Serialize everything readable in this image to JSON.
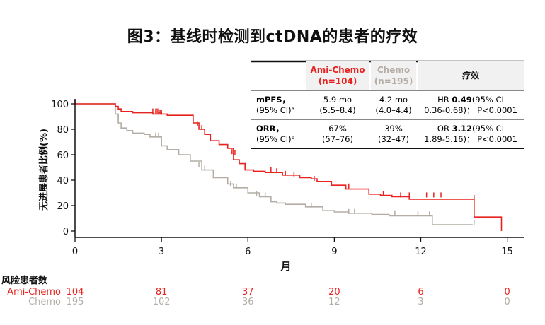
{
  "figure": {
    "title": "图3：基线时检测到ctDNA的患者的疗效",
    "colors": {
      "ami_chemo": "#e8231f",
      "chemo": "#b4ada6",
      "axis": "#111111"
    }
  },
  "table": {
    "headers": {
      "ami_name": "Ami-Chemo",
      "ami_n": "(n=104)",
      "chemo_name": "Chemo",
      "chemo_n": "(n=195)",
      "effect": "疗效"
    },
    "rows": [
      {
        "label": "mPFS，",
        "label_sub": "(95% CI)ᵃ",
        "ami": "5.9 mo",
        "ami_ci": "(5.5–8.4)",
        "chemo": "4.2 mo",
        "chemo_ci": "(4.0–4.4)",
        "effect_prefix": "HR ",
        "effect_bold": "0.49",
        "effect_suffix": "(95% CI",
        "effect_line2": "0.36-0.68)； P<0.0001"
      },
      {
        "label": "ORR，",
        "label_sub": "(95% CI)ᵇ",
        "ami": "67%",
        "ami_ci": "(57–76)",
        "chemo": "39%",
        "chemo_ci": "(32–47)",
        "effect_prefix": "OR ",
        "effect_bold": "3.12",
        "effect_suffix": "(95% CI",
        "effect_line2": "1.89-5.16)； P<0.0001"
      }
    ]
  },
  "chart_data": {
    "type": "line",
    "title": "图3：基线时检测到ctDNA的患者的疗效",
    "xlabel": "月",
    "ylabel": "无进展患者比例(%)",
    "xlim": [
      0,
      15.5
    ],
    "ylim": [
      0,
      100
    ],
    "xticks": [
      0,
      3,
      6,
      9,
      12,
      15
    ],
    "yticks": [
      0,
      20,
      40,
      60,
      80,
      100
    ],
    "grid": false,
    "step": true,
    "series": [
      {
        "name": "Ami-Chemo",
        "color": "#e8231f",
        "x": [
          0,
          1.4,
          1.5,
          1.6,
          2.0,
          2.7,
          2.9,
          3.0,
          3.2,
          4.1,
          4.3,
          4.5,
          4.7,
          5.0,
          5.3,
          5.5,
          5.7,
          5.9,
          6.2,
          6.6,
          7.2,
          7.8,
          8.2,
          8.4,
          8.9,
          9.4,
          10.2,
          10.6,
          11.0,
          11.6,
          13.8,
          13.85,
          14.8
        ],
        "y": [
          100,
          98,
          96,
          94,
          93,
          92,
          93,
          92,
          91,
          85,
          80,
          76,
          71,
          68,
          65,
          56,
          53,
          48,
          47,
          46,
          44,
          42,
          41,
          39,
          36,
          33,
          29,
          28,
          27,
          25,
          25,
          11,
          0
        ],
        "censor_x": [
          0,
          2.7,
          2.8,
          2.85,
          2.9,
          2.95,
          3.0,
          4.25,
          4.4,
          5.45,
          5.55,
          6.8,
          7.0,
          7.3,
          7.6,
          8.3,
          9.5,
          10.7,
          11.3,
          11.6,
          12.2,
          12.45,
          12.7,
          13.85
        ],
        "censor_y": [
          100,
          93,
          93,
          93,
          93,
          92,
          92,
          83,
          80,
          61,
          60,
          47,
          46,
          44,
          43,
          40,
          34,
          28,
          27,
          27,
          27,
          27,
          27,
          25
        ]
      },
      {
        "name": "Chemo",
        "color": "#b4ada6",
        "x": [
          0,
          1.4,
          1.5,
          1.6,
          1.8,
          2.0,
          2.4,
          2.6,
          3.0,
          3.2,
          3.6,
          4.0,
          4.4,
          4.8,
          5.3,
          5.5,
          6.0,
          6.4,
          6.8,
          7.0,
          7.3,
          8.0,
          8.6,
          9.0,
          9.5,
          10.3,
          10.9,
          12.4,
          13.8
        ],
        "y": [
          100,
          92,
          85,
          81,
          79,
          77,
          76,
          74,
          67,
          64,
          60,
          55,
          48,
          42,
          37,
          34,
          30,
          27,
          23,
          22,
          21,
          19,
          16,
          15,
          14,
          13,
          12,
          5,
          5
        ],
        "censor_x": [
          1.5,
          2.8,
          2.9,
          3.0,
          4.3,
          4.5,
          5.4,
          5.6,
          6.3,
          6.6,
          8.2,
          9.5,
          9.7,
          11.1,
          11.9,
          12.3,
          13.85
        ],
        "censor_y": [
          88,
          74,
          74,
          67,
          51,
          48,
          36,
          34,
          28,
          27,
          19,
          14,
          14,
          13,
          12,
          12,
          5
        ]
      }
    ]
  },
  "risk_table": {
    "title": "风险患者数",
    "times": [
      0,
      3,
      6,
      9,
      12,
      15
    ],
    "rows": [
      {
        "name": "Ami-Chemo",
        "color": "#e8231f",
        "values": [
          "104",
          "81",
          "37",
          "20",
          "6",
          "0"
        ]
      },
      {
        "name": "Chemo",
        "color": "#b4ada6",
        "values": [
          "195",
          "102",
          "36",
          "12",
          "3",
          "0"
        ]
      }
    ]
  }
}
